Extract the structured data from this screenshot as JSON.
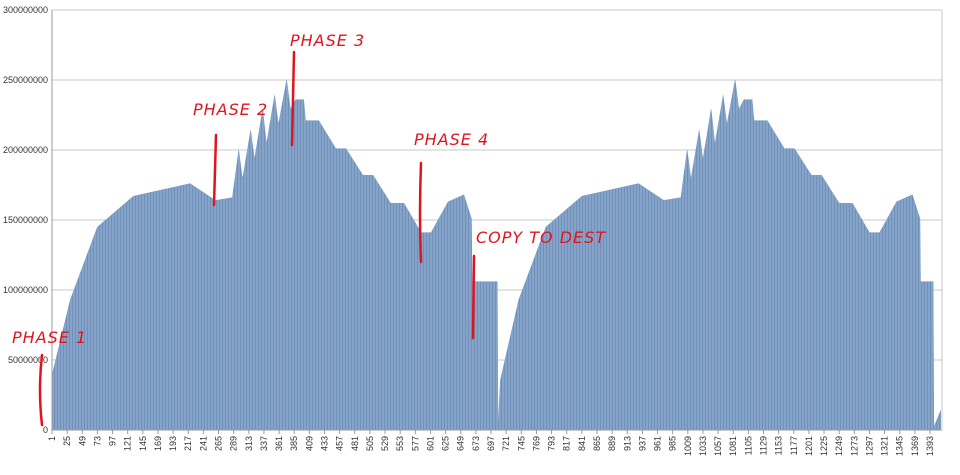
{
  "chart_data": {
    "type": "area",
    "x": [
      1,
      30,
      73,
      130,
      220,
      260,
      287,
      297,
      303,
      316,
      322,
      335,
      341,
      354,
      360,
      373,
      379,
      387,
      400,
      403,
      424,
      451,
      467,
      494,
      510,
      538,
      559,
      586,
      602,
      629,
      654,
      666,
      667,
      707,
      708,
      712,
      741,
      784,
      841,
      931,
      971,
      998,
      1008,
      1014,
      1027,
      1033,
      1046,
      1052,
      1065,
      1071,
      1084,
      1090,
      1098,
      1111,
      1114,
      1135,
      1162,
      1178,
      1205,
      1221,
      1249,
      1270,
      1297,
      1313,
      1340,
      1365,
      1377,
      1378,
      1398,
      1399,
      1410
    ],
    "values": [
      39000000,
      93000000,
      145000000,
      167000000,
      176000000,
      164000000,
      166000000,
      200000000,
      179000000,
      214000000,
      193000000,
      229000000,
      204000000,
      239000000,
      218000000,
      250000000,
      229000000,
      236000000,
      236000000,
      221000000,
      221000000,
      201000000,
      201000000,
      182000000,
      182000000,
      162000000,
      162000000,
      141000000,
      141000000,
      163000000,
      168000000,
      151000000,
      106000000,
      106000000,
      2000000,
      36000000,
      93000000,
      145000000,
      167000000,
      176000000,
      164000000,
      166000000,
      200000000,
      179000000,
      214000000,
      193000000,
      229000000,
      204000000,
      239000000,
      218000000,
      250000000,
      229000000,
      236000000,
      236000000,
      221000000,
      221000000,
      201000000,
      201000000,
      182000000,
      182000000,
      162000000,
      162000000,
      141000000,
      141000000,
      163000000,
      168000000,
      151000000,
      106000000,
      106000000,
      2000000,
      14000000
    ],
    "color": "#7d9dc3",
    "xlim": [
      1,
      1412
    ],
    "xticks": [
      1,
      25,
      49,
      73,
      97,
      121,
      145,
      169,
      193,
      217,
      241,
      265,
      289,
      313,
      337,
      361,
      385,
      409,
      433,
      457,
      481,
      505,
      529,
      553,
      577,
      601,
      625,
      649,
      673,
      697,
      721,
      745,
      769,
      793,
      817,
      841,
      865,
      889,
      913,
      937,
      961,
      985,
      1009,
      1033,
      1057,
      1081,
      1105,
      1129,
      1153,
      1177,
      1201,
      1225,
      1249,
      1273,
      1297,
      1321,
      1345,
      1369,
      1393
    ],
    "ylim": [
      0,
      300000000
    ],
    "yticks": [
      0,
      50000000,
      100000000,
      150000000,
      200000000,
      250000000,
      300000000
    ],
    "grid": true,
    "annotations": [
      "PHASE 1",
      "PHASE 2",
      "PHASE 3",
      "PHASE 4",
      "COPY TO DEST"
    ]
  }
}
